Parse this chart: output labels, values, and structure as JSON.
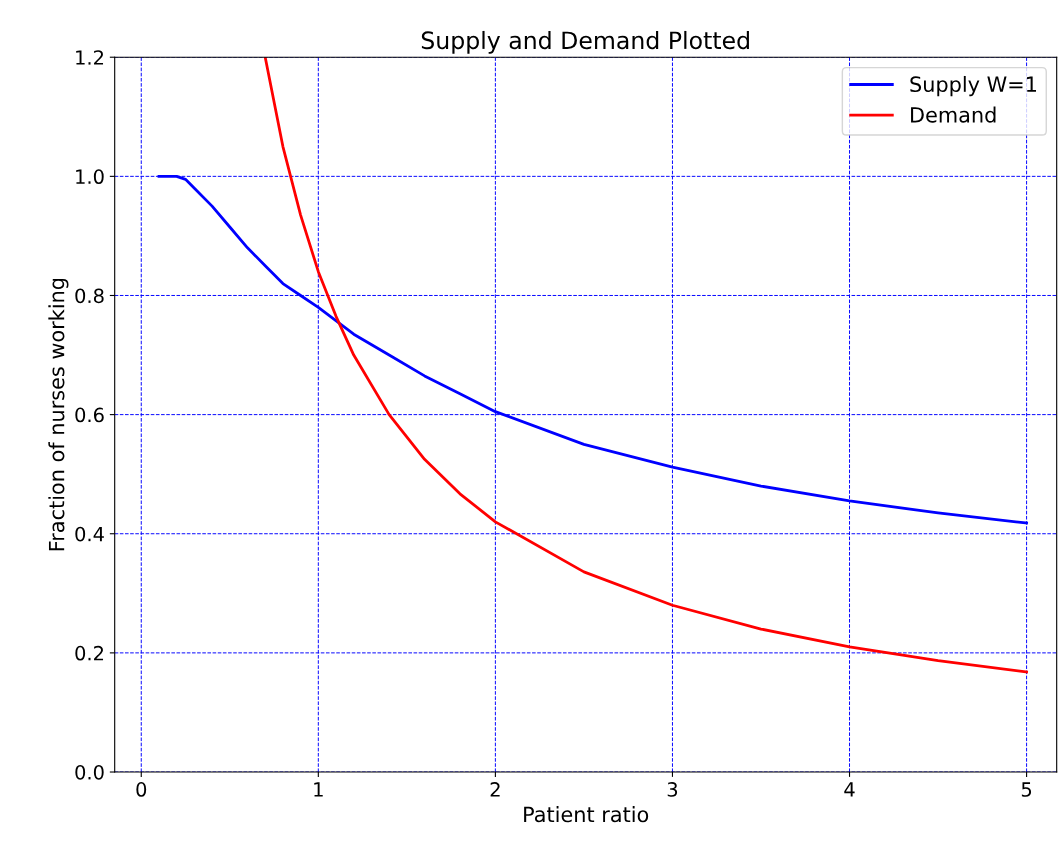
{
  "chart_data": {
    "type": "line",
    "title": "Supply and Demand Plotted",
    "xlabel": "Patient ratio",
    "ylabel": "Fraction of nurses working",
    "xlim": [
      -0.15,
      5.17
    ],
    "xticks": [
      0,
      1,
      2,
      3,
      4,
      5
    ],
    "ylim": [
      0,
      1.2
    ],
    "yticks": [
      {
        "value": 0,
        "label": "0.0"
      },
      {
        "value": 0.2,
        "label": "0.2"
      },
      {
        "value": 0.4,
        "label": "0.4"
      },
      {
        "value": 0.6,
        "label": "0.6"
      },
      {
        "value": 0.8,
        "label": "0.8"
      },
      {
        "value": 1.0,
        "label": "1.0"
      },
      {
        "value": 1.2,
        "label": "1.2"
      }
    ],
    "grid": true,
    "legend": "top right",
    "marker": "none",
    "line_style": "solid",
    "series": [
      {
        "name": "Supply W=1",
        "color": "#0000ff",
        "x": [
          0.1,
          0.2,
          0.25,
          0.3,
          0.4,
          0.5,
          0.6,
          0.7,
          0.8,
          0.9,
          1.0,
          1.2,
          1.4,
          1.6,
          1.8,
          2.0,
          2.5,
          3.0,
          3.5,
          4.0,
          4.5,
          5.0
        ],
        "values": [
          1.0,
          1.0,
          0.995,
          0.98,
          0.95,
          0.915,
          0.88,
          0.85,
          0.82,
          0.8,
          0.78,
          0.735,
          0.7,
          0.665,
          0.635,
          0.605,
          0.55,
          0.512,
          0.48,
          0.455,
          0.435,
          0.418
        ]
      },
      {
        "name": "Demand",
        "color": "#ff0000",
        "x": [
          0.7,
          0.8,
          0.9,
          1.0,
          1.1,
          1.2,
          1.4,
          1.6,
          1.8,
          2.0,
          2.5,
          3.0,
          3.5,
          4.0,
          4.5,
          5.0
        ],
        "values": [
          1.2,
          1.05,
          0.935,
          0.84,
          0.765,
          0.7,
          0.6,
          0.525,
          0.467,
          0.42,
          0.336,
          0.28,
          0.24,
          0.21,
          0.187,
          0.168
        ]
      }
    ]
  }
}
